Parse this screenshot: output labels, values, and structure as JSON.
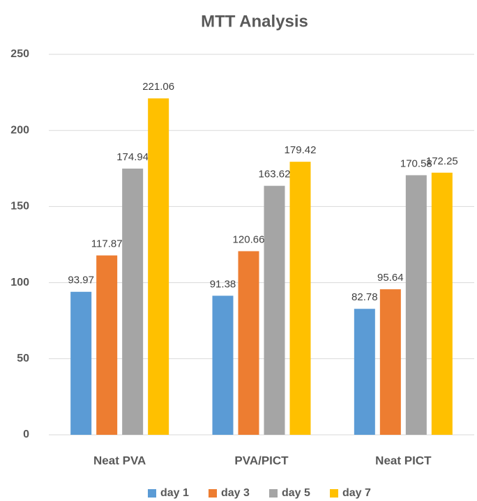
{
  "chart_data": {
    "type": "bar",
    "title": "MTT Analysis",
    "categories": [
      "Neat PVA",
      "PVA/PICT",
      "Neat PICT"
    ],
    "series": [
      {
        "name": "day 1",
        "color": "#5b9bd5",
        "values": [
          93.97,
          91.38,
          82.78
        ]
      },
      {
        "name": "day 3",
        "color": "#ed7d31",
        "values": [
          117.87,
          120.66,
          95.64
        ]
      },
      {
        "name": "day 5",
        "color": "#a5a5a5",
        "values": [
          174.94,
          163.62,
          170.58
        ]
      },
      {
        "name": "day 7",
        "color": "#ffc000",
        "values": [
          221.06,
          179.42,
          172.25
        ]
      }
    ],
    "ylim": [
      0,
      250
    ],
    "yticks": [
      0,
      50,
      100,
      150,
      200,
      250
    ],
    "grid": true,
    "legend": "bottom"
  }
}
